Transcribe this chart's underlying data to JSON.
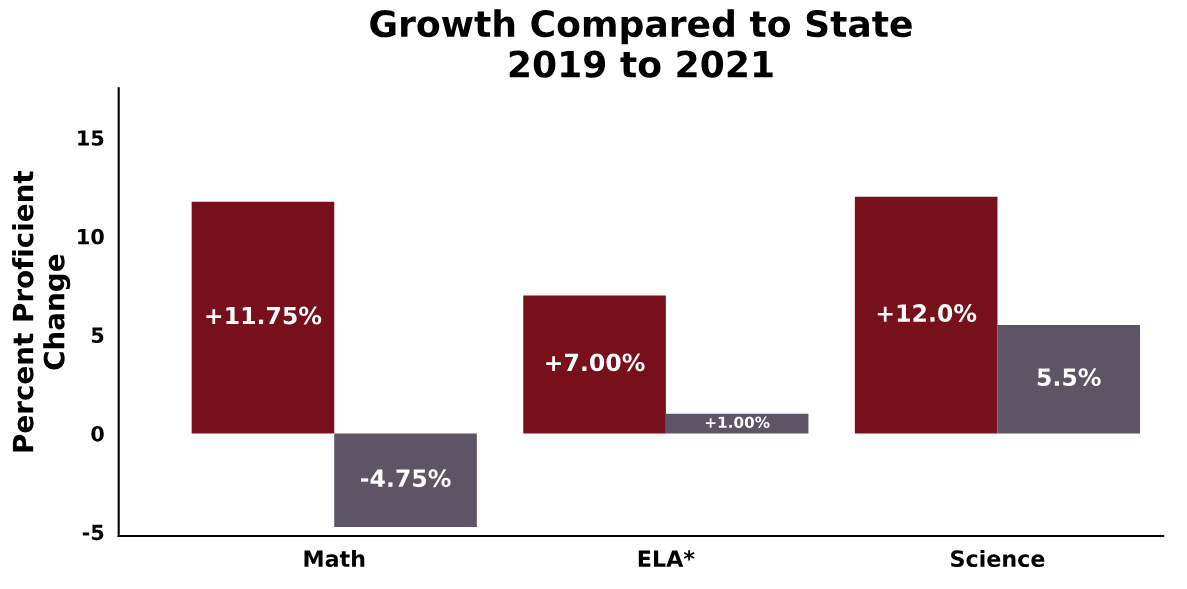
{
  "chart_data": {
    "type": "bar",
    "title": "Growth Compared to State\n2019 to 2021",
    "ylabel": "Percent Proficient\nChange",
    "categories": [
      "Math",
      "ELA*",
      "Science"
    ],
    "series": [
      {
        "color": "#78101c",
        "values": [
          11.75,
          7.0,
          12.0
        ],
        "value_labels": [
          "+11.75%",
          "+7.00%",
          "+12.0%"
        ]
      },
      {
        "color": "#5d5465",
        "values": [
          -4.75,
          1.0,
          5.5
        ],
        "value_labels": [
          "-4.75%",
          "+1.00%",
          "5.5%"
        ]
      }
    ],
    "ylim": [
      -5.2,
      17.5
    ],
    "yticks": [
      -5,
      0,
      5,
      10,
      15
    ],
    "grid": false,
    "legend": false
  }
}
